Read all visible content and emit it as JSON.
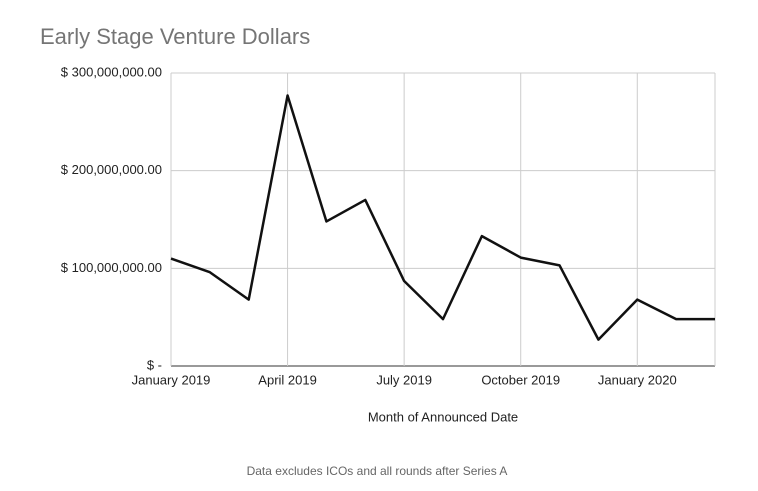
{
  "chart_data": {
    "type": "line",
    "title": "Early Stage Venture Dollars",
    "x_label": "Month of Announced Date",
    "footnote": "Data excludes ICOs and all rounds after Series A",
    "categories": [
      "January 2019",
      null,
      null,
      "April 2019",
      null,
      null,
      "July 2019",
      null,
      null,
      "October 2019",
      null,
      null,
      "January 2020",
      null,
      null
    ],
    "series": [
      {
        "name": "Early Stage Venture Dollars",
        "color": "#111111",
        "values": [
          110000000,
          96000000,
          68000000,
          277000000,
          148000000,
          170000000,
          87000000,
          48000000,
          133000000,
          111000000,
          103000000,
          27000000,
          68000000,
          48000000,
          48000000
        ]
      }
    ],
    "ylim": [
      0,
      300000000
    ],
    "yticks": [
      {
        "value": 0,
        "label": "$ -"
      },
      {
        "value": 100000000,
        "label": "$ 100,000,000.00"
      },
      {
        "value": 200000000,
        "label": "$ 200,000,000.00"
      },
      {
        "value": 300000000,
        "label": "$ 300,000,000.00"
      }
    ],
    "grid": true
  }
}
